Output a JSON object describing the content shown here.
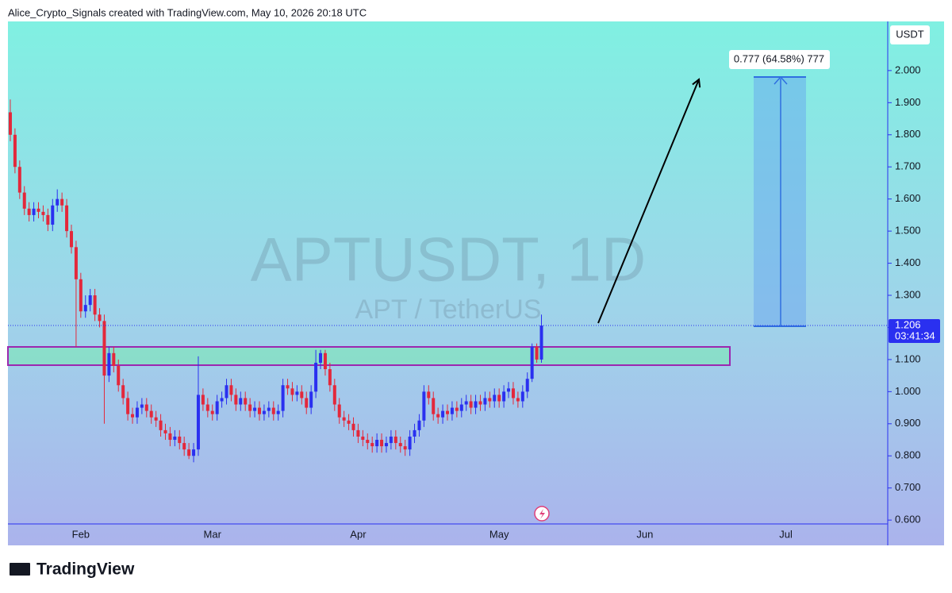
{
  "header": {
    "text": "Alice_Crypto_Signals created with TradingView.com, May 10, 2026 20:18 UTC"
  },
  "footer": {
    "brand": "TradingView"
  },
  "chart_data": {
    "type": "candlestick",
    "symbol": "APTUSDT, 1D",
    "description": "APT / TetherUS",
    "currency": "USDT",
    "countdown": "03:41:34",
    "measure_label": "0.777 (64.58%) 777",
    "up_color": "#2a30f0",
    "down_color": "#e3283b",
    "categories": [
      null,
      null,
      null,
      null,
      null,
      null,
      null,
      null,
      null,
      null,
      null,
      null,
      null,
      null,
      null,
      "Feb",
      null,
      null,
      null,
      null,
      null,
      null,
      null,
      null,
      null,
      null,
      null,
      null,
      null,
      null,
      null,
      null,
      null,
      null,
      null,
      null,
      null,
      null,
      null,
      null,
      null,
      null,
      null,
      "Mar",
      null,
      null,
      null,
      null,
      null,
      null,
      null,
      null,
      null,
      null,
      null,
      null,
      null,
      null,
      null,
      null,
      null,
      null,
      null,
      null,
      null,
      null,
      null,
      null,
      null,
      null,
      null,
      null,
      null,
      null,
      "Apr",
      null,
      null,
      null,
      null,
      null,
      null,
      null,
      null,
      null,
      null,
      null,
      null,
      null,
      null,
      null,
      null,
      null,
      null,
      null,
      null,
      null,
      null,
      null,
      null,
      null,
      null,
      null,
      null,
      null,
      "May",
      null,
      null,
      null,
      null,
      null,
      null,
      null,
      null,
      null,
      null,
      null,
      null,
      null,
      null,
      null,
      null,
      null,
      null,
      null,
      null,
      null,
      null,
      null,
      null,
      null,
      null,
      null,
      null,
      null,
      null,
      "Jun",
      null,
      null,
      null,
      null,
      null,
      null,
      null,
      null,
      null,
      null,
      null,
      null,
      null,
      null,
      null,
      null,
      null,
      null,
      null,
      null,
      null,
      null,
      null,
      null,
      null,
      null,
      null,
      null,
      null,
      "Jul",
      null,
      null,
      null,
      null,
      null,
      null,
      null,
      null,
      null,
      null,
      null,
      null,
      null,
      null,
      null,
      null,
      null,
      null,
      null,
      null,
      null
    ],
    "open": [
      1.87,
      1.8,
      1.7,
      1.62,
      1.57,
      1.55,
      1.57,
      1.56,
      1.55,
      1.52,
      1.58,
      1.6,
      1.58,
      1.5,
      1.45,
      1.35,
      1.25,
      1.27,
      1.3,
      1.24,
      1.22,
      1.05,
      1.12,
      1.08,
      1.02,
      0.98,
      0.93,
      0.92,
      0.95,
      0.96,
      0.94,
      0.92,
      0.91,
      0.88,
      0.87,
      0.85,
      0.86,
      0.84,
      0.82,
      0.8,
      0.82,
      0.99,
      0.96,
      0.94,
      0.93,
      0.97,
      0.98,
      1.02,
      0.99,
      0.96,
      0.98,
      0.96,
      0.94,
      0.95,
      0.93,
      0.94,
      0.95,
      0.93,
      0.94,
      1.02,
      1.01,
      0.99,
      1.0,
      0.98,
      0.95,
      1.0,
      1.09,
      1.12,
      1.07,
      1.02,
      0.96,
      0.92,
      0.91,
      0.9,
      0.88,
      0.86,
      0.85,
      0.84,
      0.83,
      0.85,
      0.83,
      0.84,
      0.86,
      0.84,
      0.83,
      0.82,
      0.86,
      0.88,
      0.91,
      1.0,
      0.98,
      0.93,
      0.92,
      0.94,
      0.93,
      0.95,
      0.94,
      0.96,
      0.97,
      0.95,
      0.97,
      0.96,
      0.98,
      0.97,
      0.99,
      0.97,
      1.0,
      1.01,
      0.98,
      0.97,
      1.0,
      1.04,
      1.14,
      1.1,
      null,
      null,
      null,
      null,
      null,
      null,
      null,
      null,
      null,
      null,
      null,
      null,
      null,
      null,
      null,
      null,
      null,
      null,
      null,
      null,
      null,
      null,
      null,
      null,
      null,
      null,
      null,
      null,
      null,
      null,
      null,
      null,
      null,
      null,
      null,
      null,
      null,
      null,
      null,
      null,
      null,
      null,
      null,
      null,
      null,
      null,
      null,
      null,
      null,
      null,
      null,
      null,
      null,
      null,
      null,
      null,
      null,
      null,
      null,
      null,
      null,
      null,
      null,
      null,
      null,
      null,
      null,
      null,
      null,
      null,
      null,
      null,
      null
    ],
    "high": [
      1.91,
      1.82,
      1.72,
      1.64,
      1.59,
      1.59,
      1.59,
      1.58,
      1.57,
      1.6,
      1.63,
      1.62,
      1.6,
      1.52,
      1.47,
      1.37,
      1.3,
      1.32,
      1.32,
      1.26,
      1.24,
      1.14,
      1.14,
      1.1,
      1.04,
      1.0,
      0.95,
      0.97,
      0.98,
      0.98,
      0.96,
      0.94,
      0.93,
      0.9,
      0.89,
      0.88,
      0.88,
      0.86,
      0.84,
      0.84,
      1.11,
      1.01,
      0.98,
      0.96,
      0.99,
      1.0,
      1.04,
      1.04,
      1.01,
      1.0,
      1.0,
      0.98,
      0.97,
      0.97,
      0.96,
      0.97,
      0.97,
      0.96,
      1.04,
      1.04,
      1.03,
      1.02,
      1.02,
      1.0,
      1.02,
      1.13,
      1.13,
      1.13,
      1.09,
      1.04,
      0.98,
      0.94,
      0.93,
      0.92,
      0.9,
      0.88,
      0.87,
      0.86,
      0.87,
      0.87,
      0.86,
      0.88,
      0.88,
      0.86,
      0.85,
      0.88,
      0.9,
      0.93,
      1.02,
      1.02,
      1.0,
      0.95,
      0.96,
      0.96,
      0.97,
      0.97,
      0.98,
      0.99,
      0.99,
      0.99,
      0.99,
      1.0,
      1.0,
      1.01,
      1.01,
      1.02,
      1.03,
      1.03,
      1.0,
      1.02,
      1.06,
      1.15,
      1.15,
      1.24,
      null,
      null,
      null,
      null,
      null,
      null,
      null,
      null,
      null,
      null,
      null,
      null,
      null,
      null,
      null,
      null,
      null,
      null,
      null,
      null,
      null,
      null,
      null,
      null,
      null,
      null,
      null,
      null,
      null,
      null,
      null,
      null,
      null,
      null,
      null,
      null,
      null,
      null,
      null,
      null,
      null,
      null,
      null,
      null,
      null,
      null,
      null,
      null,
      null,
      null,
      null,
      null,
      null,
      null,
      null,
      null,
      null,
      null,
      null,
      null,
      null,
      null,
      null,
      null,
      null,
      null,
      null,
      null,
      null,
      null,
      null,
      null,
      null
    ],
    "low": [
      1.78,
      1.68,
      1.6,
      1.55,
      1.53,
      1.53,
      1.54,
      1.53,
      1.5,
      1.5,
      1.56,
      1.56,
      1.48,
      1.43,
      1.14,
      1.23,
      1.23,
      1.25,
      1.22,
      1.2,
      0.9,
      1.03,
      1.06,
      1.0,
      0.96,
      0.91,
      0.9,
      0.9,
      0.93,
      0.92,
      0.9,
      0.89,
      0.86,
      0.85,
      0.83,
      0.83,
      0.82,
      0.8,
      0.79,
      0.78,
      0.8,
      0.94,
      0.92,
      0.91,
      0.91,
      0.95,
      0.96,
      0.97,
      0.94,
      0.94,
      0.94,
      0.92,
      0.92,
      0.91,
      0.91,
      0.92,
      0.91,
      0.91,
      0.92,
      0.99,
      0.97,
      0.97,
      0.96,
      0.93,
      0.93,
      0.98,
      1.07,
      1.05,
      1.0,
      0.94,
      0.9,
      0.89,
      0.88,
      0.86,
      0.84,
      0.83,
      0.82,
      0.81,
      0.81,
      0.81,
      0.81,
      0.82,
      0.82,
      0.81,
      0.8,
      0.8,
      0.84,
      0.86,
      0.89,
      0.96,
      0.91,
      0.9,
      0.9,
      0.91,
      0.91,
      0.92,
      0.92,
      0.94,
      0.93,
      0.93,
      0.94,
      0.94,
      0.95,
      0.95,
      0.95,
      0.95,
      0.98,
      0.96,
      0.95,
      0.95,
      0.98,
      1.03,
      1.09,
      1.09,
      null,
      null,
      null,
      null,
      null,
      null,
      null,
      null,
      null,
      null,
      null,
      null,
      null,
      null,
      null,
      null,
      null,
      null,
      null,
      null,
      null,
      null,
      null,
      null,
      null,
      null,
      null,
      null,
      null,
      null,
      null,
      null,
      null,
      null,
      null,
      null,
      null,
      null,
      null,
      null,
      null,
      null,
      null,
      null,
      null,
      null,
      null,
      null,
      null,
      null,
      null,
      null,
      null,
      null,
      null,
      null,
      null,
      null,
      null,
      null,
      null,
      null,
      null,
      null,
      null,
      null,
      null,
      null,
      null,
      null,
      null,
      null,
      null
    ],
    "close": [
      1.8,
      1.7,
      1.62,
      1.57,
      1.55,
      1.57,
      1.56,
      1.55,
      1.52,
      1.58,
      1.6,
      1.58,
      1.5,
      1.45,
      1.35,
      1.25,
      1.27,
      1.3,
      1.24,
      1.22,
      1.05,
      1.12,
      1.08,
      1.02,
      0.98,
      0.93,
      0.92,
      0.95,
      0.96,
      0.94,
      0.92,
      0.91,
      0.88,
      0.87,
      0.85,
      0.86,
      0.84,
      0.82,
      0.8,
      0.82,
      0.99,
      0.96,
      0.94,
      0.93,
      0.97,
      0.98,
      1.02,
      0.99,
      0.96,
      0.98,
      0.96,
      0.94,
      0.95,
      0.93,
      0.94,
      0.95,
      0.93,
      0.94,
      1.02,
      1.01,
      0.99,
      1.0,
      0.98,
      0.95,
      1.0,
      1.09,
      1.12,
      1.07,
      1.02,
      0.96,
      0.92,
      0.91,
      0.9,
      0.88,
      0.86,
      0.85,
      0.84,
      0.83,
      0.85,
      0.83,
      0.84,
      0.86,
      0.84,
      0.83,
      0.82,
      0.86,
      0.88,
      0.91,
      1.0,
      0.98,
      0.93,
      0.92,
      0.94,
      0.93,
      0.95,
      0.94,
      0.96,
      0.97,
      0.95,
      0.97,
      0.96,
      0.98,
      0.97,
      0.99,
      0.97,
      1.0,
      1.01,
      0.98,
      0.97,
      1.0,
      1.04,
      1.14,
      1.1,
      1.206,
      null,
      null,
      null,
      null,
      null,
      null,
      null,
      null,
      null,
      null,
      null,
      null,
      null,
      null,
      null,
      null,
      null,
      null,
      null,
      null,
      null,
      null,
      null,
      null,
      null,
      null,
      null,
      null,
      null,
      null,
      null,
      null,
      null,
      null,
      null,
      null,
      null,
      null,
      null,
      null,
      null,
      null,
      null,
      null,
      null,
      null,
      null,
      null,
      null,
      null,
      null,
      null,
      null,
      null,
      null,
      null,
      null,
      null,
      null,
      null,
      null,
      null,
      null,
      null,
      null,
      null,
      null,
      null,
      null,
      null,
      null,
      null,
      null
    ],
    "ylim": [
      0.588,
      2.153
    ],
    "yticks": [
      {
        "value": 0.6,
        "label": "0.600"
      },
      {
        "value": 0.7,
        "label": "0.700"
      },
      {
        "value": 0.8,
        "label": "0.800"
      },
      {
        "value": 0.9,
        "label": "0.900"
      },
      {
        "value": 1.0,
        "label": "1.000"
      },
      {
        "value": 1.1,
        "label": "1.100"
      },
      {
        "value": 1.2,
        "label": "1.200"
      },
      {
        "value": 1.3,
        "label": "1.300"
      },
      {
        "value": 1.4,
        "label": "1.400"
      },
      {
        "value": 1.5,
        "label": "1.500"
      },
      {
        "value": 1.6,
        "label": "1.600"
      },
      {
        "value": 1.7,
        "label": "1.700"
      },
      {
        "value": 1.8,
        "label": "1.800"
      },
      {
        "value": 1.9,
        "label": "1.900"
      },
      {
        "value": 2.0,
        "label": "2.000"
      }
    ]
  }
}
